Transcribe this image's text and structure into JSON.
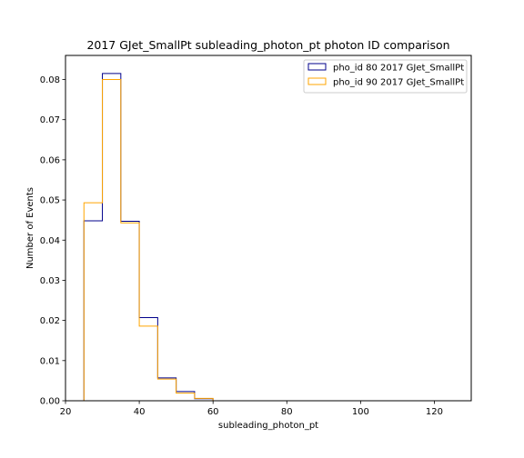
{
  "chart_data": {
    "type": "histogram",
    "title": "2017 GJet_SmallPt subleading_photon_pt photon ID comparison",
    "xlabel": "subleading_photon_pt",
    "ylabel": "Number of Events",
    "xlim": [
      20,
      130
    ],
    "ylim": [
      0,
      0.086
    ],
    "xticks": [
      20,
      40,
      60,
      80,
      100,
      120
    ],
    "yticks": [
      0.0,
      0.01,
      0.02,
      0.03,
      0.04,
      0.05,
      0.06,
      0.07,
      0.08
    ],
    "ytick_labels": [
      "0.00",
      "0.01",
      "0.02",
      "0.03",
      "0.04",
      "0.05",
      "0.06",
      "0.07",
      "0.08"
    ],
    "bin_edges": [
      25,
      30,
      35,
      40,
      45,
      50,
      55,
      60
    ],
    "legend_position": "upper right",
    "grid": false,
    "series": [
      {
        "name": "pho_id 80 2017 GJet_SmallPt",
        "color": "#00008b",
        "values": [
          0.0448,
          0.0815,
          0.0447,
          0.0207,
          0.0057,
          0.0023,
          0.0005
        ]
      },
      {
        "name": "pho_id 90 2017 GJet_SmallPt",
        "color": "#ffa500",
        "values": [
          0.0493,
          0.08,
          0.0443,
          0.0186,
          0.0054,
          0.0019,
          0.0006
        ]
      }
    ]
  }
}
